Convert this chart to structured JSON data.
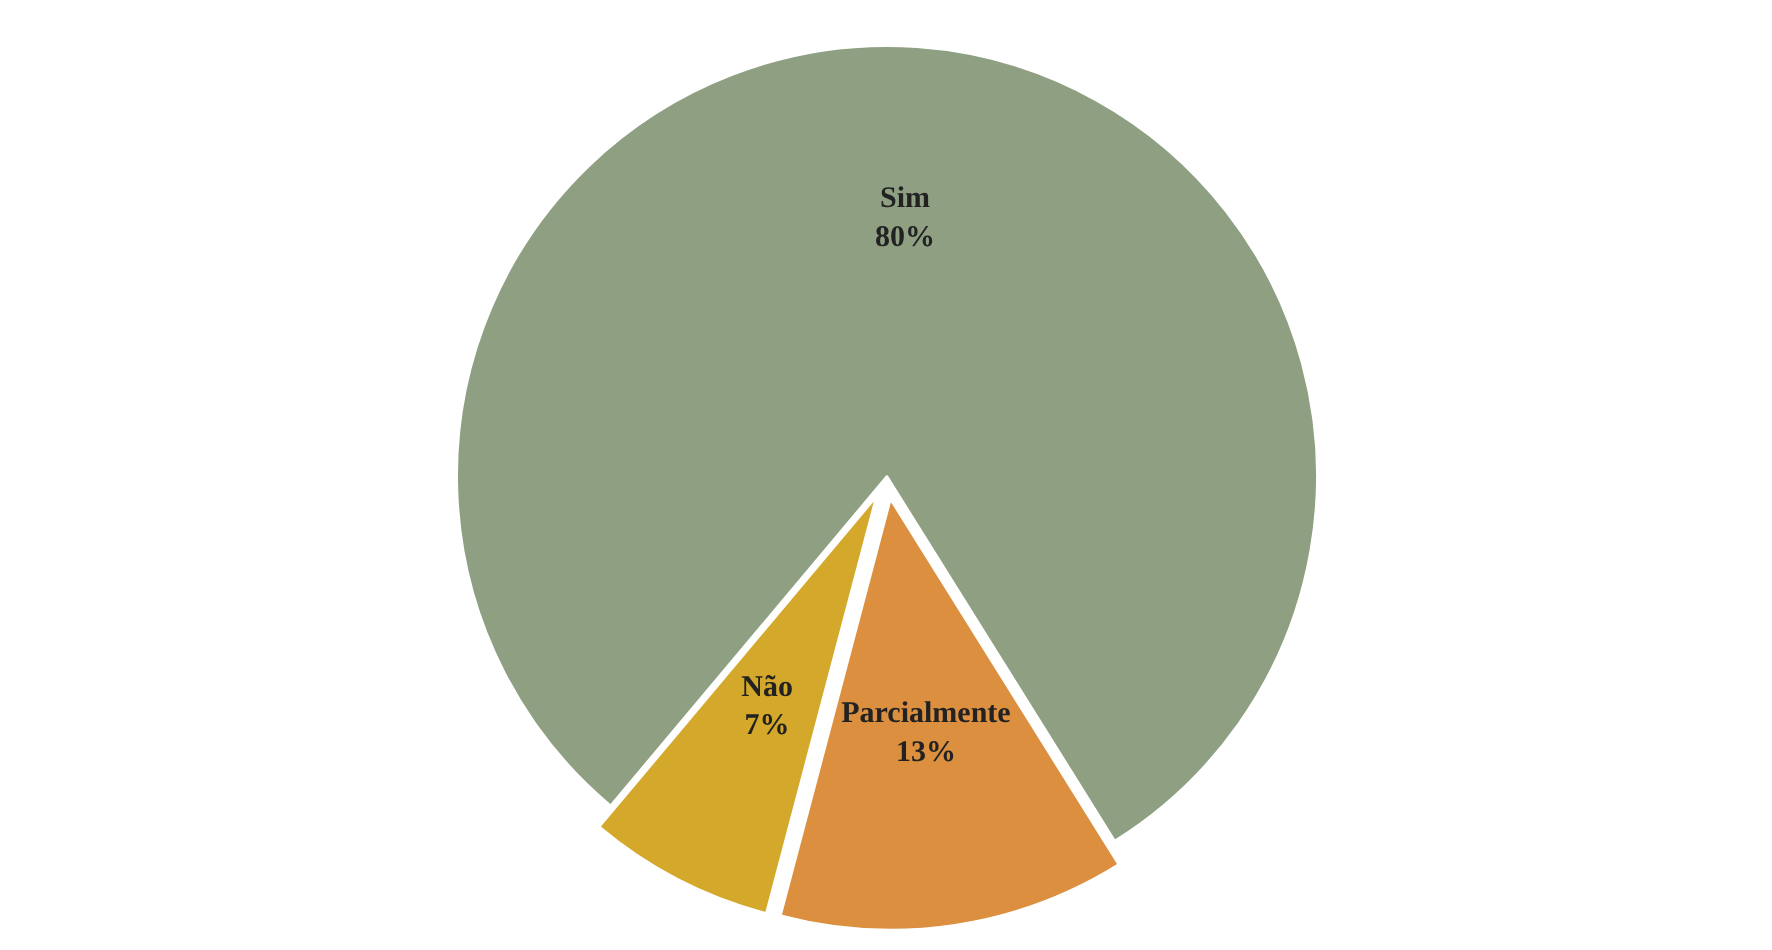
{
  "chart_data": {
    "type": "pie",
    "categories": [
      "Sim",
      "Não",
      "Parcialmente"
    ],
    "values": [
      80,
      7,
      13
    ],
    "colors": [
      "#8f9f82",
      "#d4a82a",
      "#dc8f3e"
    ],
    "value_labels": [
      "80%",
      "7%",
      "13%"
    ]
  }
}
